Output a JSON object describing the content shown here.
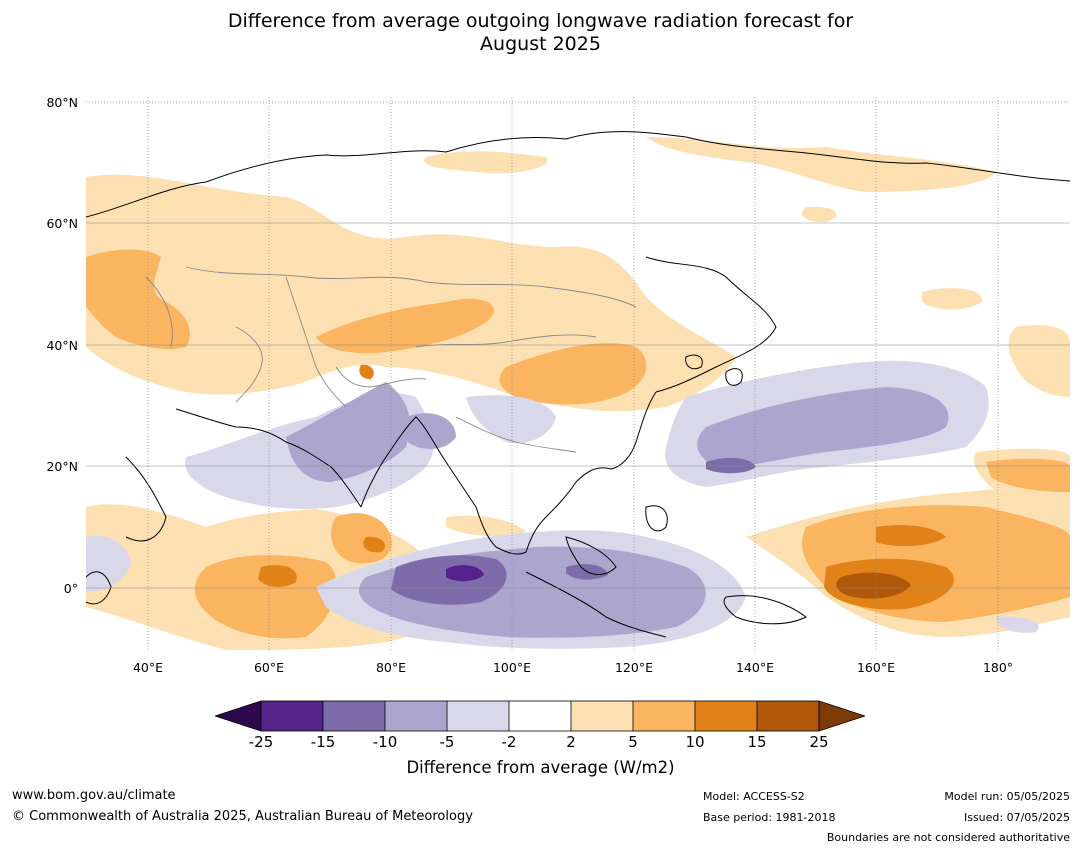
{
  "title_line1": "Difference from average outgoing longwave radiation forecast for",
  "title_line2": "August 2025",
  "lat_labels": [
    "80°N",
    "60°N",
    "40°N",
    "20°N",
    "0°"
  ],
  "lon_labels": [
    "40°E",
    "60°E",
    "80°E",
    "100°E",
    "120°E",
    "140°E",
    "160°E",
    "180°"
  ],
  "colorbar": {
    "ticks": [
      "-25",
      "-15",
      "-10",
      "-5",
      "-2",
      "2",
      "5",
      "10",
      "15",
      "25"
    ],
    "colors": {
      "below_min": "#2d0a4e",
      "lt_neg15": "#54228a",
      "neg15_neg10": "#7e6caa",
      "neg10_neg5": "#aca6cf",
      "neg5_neg2": "#d9d8ea",
      "neg2_2": "#ffffff",
      "2_5": "#fde0b2",
      "5_10": "#fbb45f",
      "10_15": "#e08218",
      "15_25": "#b05709",
      "above_max": "#7e3a07"
    },
    "label": "Difference from average (W/m2)"
  },
  "footer": {
    "url": "www.bom.gov.au/climate",
    "copyright": "© Commonwealth of Australia 2025, Australian Bureau of Meteorology",
    "model": "Model: ACCESS-S2",
    "base_period": "Base period: 1981-2018",
    "model_run": "Model run: 05/05/2025",
    "issued": "Issued: 07/05/2025",
    "disclaimer": "Boundaries are not considered authoritative"
  }
}
